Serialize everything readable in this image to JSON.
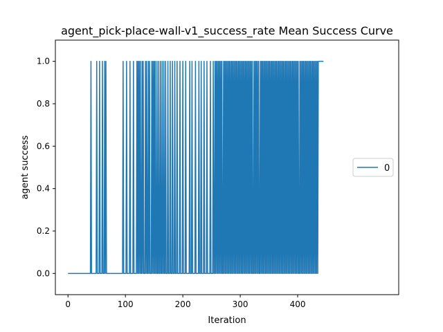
{
  "chart_data": {
    "type": "line",
    "title": "agent_pick-place-wall-v1_success_rate Mean Success Curve",
    "xlabel": "Iteration",
    "ylabel": "agent success",
    "xlim": [
      -22,
      576
    ],
    "ylim": [
      -0.1,
      1.1
    ],
    "x_ticks": [
      0,
      100,
      200,
      300,
      400
    ],
    "y_ticks": [
      0.0,
      0.2,
      0.4,
      0.6,
      0.8,
      1.0
    ],
    "x_tick_labels": [
      "0",
      "100",
      "200",
      "300",
      "400"
    ],
    "y_tick_labels": [
      "0.0",
      "0.2",
      "0.4",
      "0.6",
      "0.8",
      "1.0"
    ],
    "grid": false,
    "legend_position": "center-right",
    "series": [
      {
        "name": "0",
        "color": "#1f77b4",
        "x_start": 0,
        "x_end": 445,
        "success_iterations": [
          40,
          50,
          55,
          60,
          64,
          66,
          96,
          102,
          108,
          114,
          120,
          122,
          124,
          126,
          129,
          131,
          135,
          137,
          140,
          142,
          146,
          148,
          150,
          152,
          155,
          158,
          161,
          164,
          167,
          170,
          174,
          178,
          182,
          186,
          190,
          195,
          200,
          205,
          212,
          216,
          222,
          228,
          232,
          237,
          242,
          248,
          253,
          256,
          258,
          260,
          262,
          264,
          266,
          268,
          271,
          273,
          275,
          277,
          279,
          281,
          283,
          285,
          287,
          289,
          291,
          293,
          295,
          297,
          299,
          301,
          303,
          305,
          307,
          309,
          311,
          313,
          315,
          317,
          319,
          321,
          324,
          326,
          328,
          330,
          332,
          335,
          337,
          339,
          341,
          343,
          345,
          347,
          349,
          351,
          353,
          355,
          357,
          359,
          361,
          363,
          365,
          367,
          369,
          371,
          373,
          375,
          377,
          379,
          381,
          383,
          385,
          387,
          389,
          391,
          393,
          395,
          397,
          399,
          401,
          404,
          406,
          408,
          410,
          412,
          414,
          416,
          418,
          420,
          422,
          424,
          426,
          428,
          430,
          432,
          434,
          436,
          437,
          438,
          439,
          440,
          441,
          442,
          443,
          444,
          445
        ]
      }
    ]
  }
}
